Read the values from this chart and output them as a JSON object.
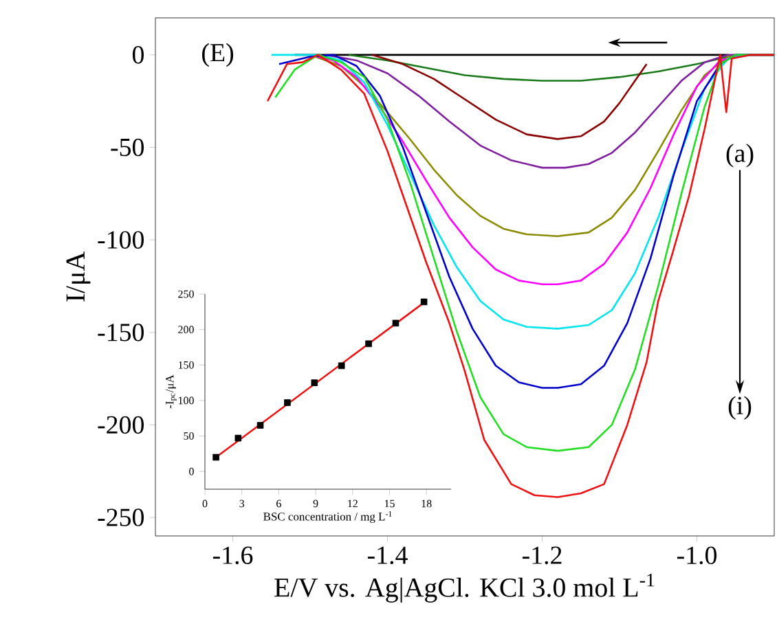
{
  "chart_data": [
    {
      "type": "line",
      "xlabel": "E/V vs. Ag|AgCl. KCl 3.0 mol L$^{-1}$",
      "ylabel": "I/μA",
      "annotations": [
        "(E)",
        "(a)",
        "(i)"
      ],
      "marker": "none",
      "xlim": [
        -1.7,
        -0.9
      ],
      "ylim": [
        -260,
        20
      ],
      "xticks": [
        -1.6,
        -1.4,
        -1.2,
        {
          "value": -1,
          "label": "-1.0"
        }
      ],
      "yticks": [
        -250,
        -200,
        -150,
        -100,
        -50,
        0
      ],
      "series": [
        {
          "color": "#000000",
          "x": [
            -1.52,
            -0.96
          ],
          "values": [
            0,
            0
          ]
        },
        {
          "color": "#1a7a1a",
          "x": [
            -1.45,
            -1.4,
            -1.35,
            -1.3,
            -1.25,
            -1.2,
            -1.15,
            -1.1,
            -1.05,
            -1.0,
            -0.96,
            -0.93,
            -0.9
          ],
          "values": [
            0,
            -3,
            -7,
            -11,
            -13,
            -14,
            -14,
            -12,
            -9,
            -5,
            -1,
            0,
            0
          ]
        },
        {
          "color": "#8b0000",
          "x": [
            -1.42,
            -1.38,
            -1.34,
            -1.3,
            -1.26,
            -1.22,
            -1.18,
            -1.15,
            -1.12,
            -1.1,
            -1.08,
            -1.065
          ],
          "values": [
            0,
            -5,
            -13,
            -24,
            -35,
            -43,
            -45.5,
            -44,
            -36,
            -26,
            -14,
            -5
          ]
        },
        {
          "color": "#7f1f9f",
          "x": [
            -1.48,
            -1.44,
            -1.4,
            -1.36,
            -1.32,
            -1.28,
            -1.24,
            -1.2,
            -1.17,
            -1.14,
            -1.11,
            -1.08,
            -1.05,
            -1.02,
            -0.99,
            -0.96,
            -0.92,
            -0.9
          ],
          "values": [
            0,
            -3,
            -10,
            -22,
            -36,
            -49,
            -57,
            -61,
            -61,
            -59,
            -53,
            -42,
            -28,
            -14,
            -4,
            0,
            0,
            0
          ]
        },
        {
          "color": "#8b8b00",
          "x": [
            -1.5,
            -1.46,
            -1.43,
            -1.4,
            -1.37,
            -1.34,
            -1.31,
            -1.28,
            -1.25,
            -1.22,
            -1.18,
            -1.14,
            -1.11,
            -1.08,
            -1.05,
            -1.02,
            -0.99,
            -0.96,
            -0.93,
            -0.9
          ],
          "values": [
            0,
            -6,
            -17,
            -31,
            -46,
            -62,
            -76,
            -87,
            -94,
            -97,
            -98,
            -96,
            -88,
            -73,
            -52,
            -30,
            -11,
            -1,
            0,
            0
          ]
        },
        {
          "color": "#ff00ff",
          "x": [
            -1.5,
            -1.47,
            -1.44,
            -1.41,
            -1.38,
            -1.35,
            -1.32,
            -1.29,
            -1.26,
            -1.23,
            -1.2,
            -1.18,
            -1.15,
            -1.12,
            -1.09,
            -1.06,
            -1.03,
            -1.0,
            -0.97,
            -0.94,
            -0.9
          ],
          "values": [
            0,
            -3,
            -12,
            -28,
            -47,
            -68,
            -88,
            -104,
            -116,
            -122,
            -124,
            -124,
            -122,
            -113,
            -96,
            -72,
            -43,
            -17,
            -3,
            0,
            0
          ]
        },
        {
          "color": "#00e5ee",
          "x": [
            -1.55,
            -1.52,
            -1.49,
            -1.46,
            -1.43,
            -1.4,
            -1.37,
            -1.34,
            -1.31,
            -1.28,
            -1.25,
            -1.22,
            -1.18,
            -1.14,
            -1.11,
            -1.08,
            -1.05,
            -1.02,
            -0.99,
            -0.96,
            -0.93,
            -0.9
          ],
          "values": [
            0,
            0,
            0,
            -3,
            -15,
            -38,
            -65,
            -92,
            -115,
            -133,
            -143,
            -147,
            -148,
            -146,
            -138,
            -118,
            -88,
            -52,
            -18,
            -2,
            0,
            0
          ]
        },
        {
          "color": "#0000cc",
          "x": [
            -1.54,
            -1.5,
            -1.47,
            -1.44,
            -1.41,
            -1.38,
            -1.35,
            -1.32,
            -1.29,
            -1.26,
            -1.23,
            -1.2,
            -1.18,
            -1.15,
            -1.12,
            -1.09,
            -1.06,
            -1.03,
            -1.0,
            -0.97,
            -0.95,
            -0.92,
            -0.9
          ],
          "values": [
            -5,
            -1,
            0,
            -6,
            -22,
            -50,
            -85,
            -120,
            -148,
            -168,
            -177,
            -180,
            -180,
            -178,
            -168,
            -145,
            -110,
            -65,
            -25,
            -5,
            0,
            0,
            0
          ]
        },
        {
          "color": "#22dd22",
          "x": [
            -1.545,
            -1.52,
            -1.49,
            -1.46,
            -1.43,
            -1.4,
            -1.37,
            -1.34,
            -1.31,
            -1.28,
            -1.25,
            -1.22,
            -1.18,
            -1.14,
            -1.11,
            -1.08,
            -1.05,
            -1.02,
            -0.99,
            -0.97,
            -0.95,
            -0.92,
            -0.9
          ],
          "values": [
            -23,
            -8,
            0,
            -4,
            -12,
            -35,
            -70,
            -110,
            -150,
            -185,
            -205,
            -212,
            -214,
            -212,
            -200,
            -170,
            -125,
            -75,
            -28,
            -5,
            0,
            0,
            0
          ]
        },
        {
          "color": "#ee1111",
          "x": [
            -1.555,
            -1.53,
            -1.51,
            -1.49,
            -1.46,
            -1.43,
            -1.4,
            -1.38,
            -1.35,
            -1.32,
            -1.3,
            -1.275,
            -1.24,
            -1.21,
            -1.18,
            -1.15,
            -1.12,
            -1.09,
            -1.065,
            -1.05,
            -1.03,
            -1.01,
            -0.99,
            -0.97,
            -0.962,
            -0.955,
            -0.93,
            -0.9
          ],
          "values": [
            -25,
            -5,
            -4,
            0,
            -8,
            -21,
            -52,
            -76,
            -112,
            -145,
            -171,
            -208,
            -232,
            -238,
            -239,
            -237,
            -232,
            -200,
            -166,
            -133,
            -105,
            -76,
            -40,
            0,
            -31,
            -2,
            0,
            0
          ]
        }
      ]
    },
    {
      "type": "scatter",
      "xlabel": "BSC concentration / mg L$^{-1}$",
      "ylabel": "-I$_{pc}$/μA",
      "xlim": [
        0,
        20
      ],
      "ylim": [
        -25,
        250
      ],
      "xticks": [
        0,
        3,
        6,
        9,
        12,
        15,
        18
      ],
      "yticks": [
        0,
        50,
        100,
        150,
        200,
        250
      ],
      "series": [
        {
          "type": "scatter",
          "color": "#000000",
          "marker": "square",
          "x": [
            0.9,
            2.7,
            4.5,
            6.7,
            8.9,
            11.1,
            13.3,
            15.5,
            17.8
          ],
          "values": [
            20,
            47,
            65,
            97,
            125,
            149,
            180,
            209,
            239
          ]
        },
        {
          "type": "line",
          "color": "#ee1111",
          "marker": "none",
          "x": [
            0.9,
            17.8
          ],
          "values": [
            20,
            238
          ]
        }
      ]
    }
  ]
}
